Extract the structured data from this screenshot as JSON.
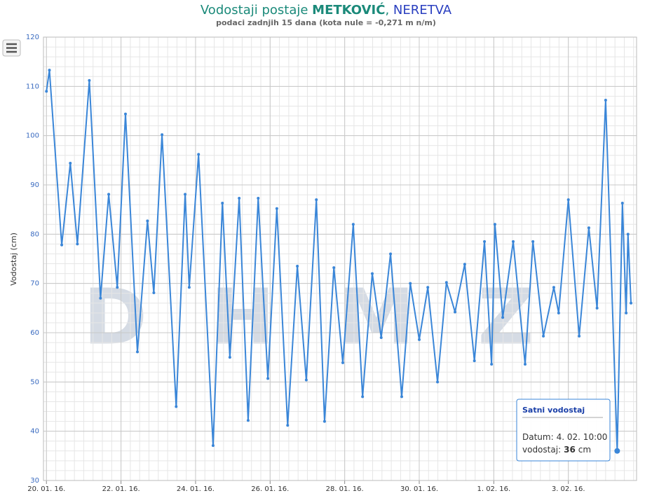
{
  "chart_data": {
    "type": "line",
    "title_parts": [
      "Vodostaji postaje ",
      "METKOVIĆ",
      ", ",
      "NERETVA"
    ],
    "subtitle": "podaci zadnjih 15 dana (kota nule = -0,271 m n/m)",
    "y_label": "Vodostaj (cm)",
    "watermark": "DHMZ",
    "series": [
      {
        "name": "Satni vodostaj",
        "color": "#3a86d8",
        "x": [
          0,
          0.08,
          0.41,
          0.64,
          0.83,
          1.15,
          1.45,
          1.67,
          1.9,
          2.12,
          2.44,
          2.71,
          2.88,
          3.1,
          3.48,
          3.72,
          3.83,
          4.08,
          4.47,
          4.72,
          4.92,
          5.17,
          5.41,
          5.68,
          5.94,
          6.18,
          6.47,
          6.73,
          6.97,
          7.24,
          7.46,
          7.71,
          7.95,
          8.23,
          8.48,
          8.74,
          8.98,
          9.23,
          9.53,
          9.76,
          10,
          10.23,
          10.49,
          10.73,
          10.96,
          11.22,
          11.48,
          11.75,
          11.94,
          12.03,
          12.24,
          12.52,
          12.84,
          13.05,
          13.33,
          13.61,
          13.74,
          14,
          14.29,
          14.55,
          14.77,
          15,
          15.31,
          15.45,
          15.55,
          15.6,
          15.68
        ],
        "values": [
          109,
          113.3,
          77.8,
          94.4,
          78,
          111.2,
          67,
          88.1,
          69.2,
          104.4,
          56.1,
          82.7,
          68.1,
          100.2,
          45,
          88.1,
          69.2,
          96.2,
          37.1,
          86.3,
          55,
          87.3,
          42.2,
          87.3,
          50.7,
          85.2,
          41.2,
          73.5,
          50.4,
          87,
          42,
          73.2,
          53.9,
          82,
          47,
          72,
          59,
          76,
          47,
          70,
          58.6,
          69.2,
          50,
          70.2,
          64.2,
          73.9,
          54.3,
          78.5,
          53.6,
          82,
          63.1,
          78.5,
          53.6,
          78.5,
          59.3,
          69.2,
          64,
          87,
          59.3,
          81.3,
          65,
          107.2,
          36,
          86.3,
          64,
          80,
          66
        ]
      }
    ],
    "xlim": [
      -0.08,
      15.83
    ],
    "xticks": [
      {
        "value": 0,
        "label": "20. 01. 16."
      },
      {
        "value": 2,
        "label": "22. 01. 16."
      },
      {
        "value": 4,
        "label": "24. 01. 16."
      },
      {
        "value": 6,
        "label": "26. 01. 16."
      },
      {
        "value": 8,
        "label": "28. 01. 16."
      },
      {
        "value": 10,
        "label": "30. 01. 16."
      },
      {
        "value": 12,
        "label": "1. 02. 16."
      },
      {
        "value": 14,
        "label": "3. 02. 16."
      }
    ],
    "ylim": [
      30,
      120
    ],
    "yticks": [
      30,
      40,
      50,
      60,
      70,
      80,
      90,
      100,
      110,
      120
    ],
    "grid": true,
    "tooltip": {
      "title": "Satni vodostaj",
      "date_label": "Datum:",
      "date": "4. 02. 10:00",
      "value_label": "vodostaj:",
      "value": 36,
      "unit": "cm"
    }
  }
}
